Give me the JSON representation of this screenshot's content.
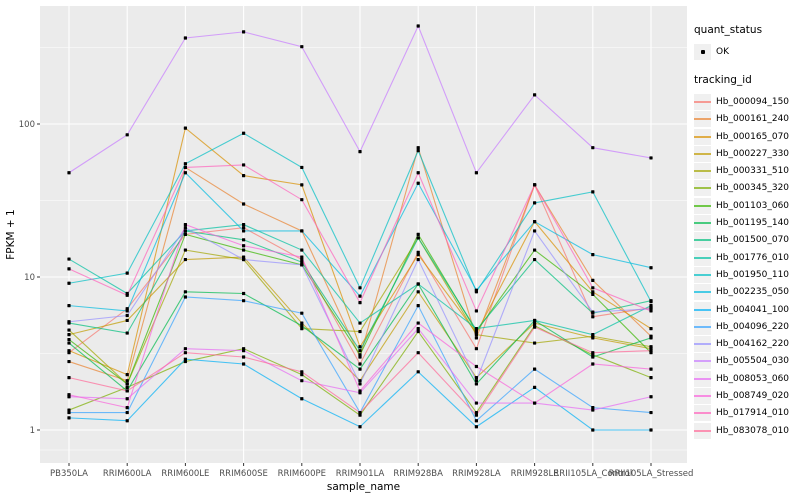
{
  "figure": {
    "panel_background": "#EBEBEB",
    "gridline_color": "#FFFFFF",
    "tick_label_color": "#4D4D4D",
    "axis_title_color": "#000000",
    "point_color": "#000000"
  },
  "legend": {
    "quant_status_title": "quant_status",
    "quant_status_items": [
      {
        "label": "OK",
        "icon": "point-icon",
        "color": "#000000"
      }
    ],
    "tracking_id_title": "tracking_id",
    "key_background": "#F0F0F0"
  },
  "chart_data": {
    "type": "line",
    "title": "",
    "xlabel": "sample_name",
    "ylabel": "FPKM + 1",
    "y_scale": "log10",
    "y_ticks": [
      1,
      10,
      100
    ],
    "ylim": [
      0.62,
      575
    ],
    "grid": true,
    "legend_position": "right",
    "marker": "black-point",
    "categories": [
      "PB350LA",
      "RRIM600LA",
      "RRIM600LE",
      "RRIM600SE",
      "RRIM600PE",
      "RRIM901LA",
      "RRIM928BA",
      "RRIM928LA",
      "RRIM928LE",
      "RRII105LA_Control",
      "RRII105LA_Stressed"
    ],
    "series": [
      {
        "name": "Hb_000094_150",
        "color": "#F8766D",
        "values": [
          3.2,
          6.2,
          19,
          21,
          13,
          2.7,
          14.5,
          3.4,
          40,
          5.5,
          6.3
        ]
      },
      {
        "name": "Hb_000161_240",
        "color": "#EA8331",
        "values": [
          2.8,
          2.1,
          52,
          30,
          20,
          3.0,
          70,
          4.0,
          40,
          9.5,
          4.1
        ]
      },
      {
        "name": "Hb_000165_070",
        "color": "#D89000",
        "values": [
          3.3,
          2.3,
          94,
          46,
          40,
          3.5,
          14,
          4.3,
          23,
          8.0,
          4.6
        ]
      },
      {
        "name": "Hb_000227_330",
        "color": "#C09B00",
        "values": [
          4.2,
          5.2,
          13,
          13.5,
          5.0,
          2.1,
          8.0,
          2.2,
          5.0,
          4.0,
          3.4
        ]
      },
      {
        "name": "Hb_000331_510",
        "color": "#A3A500",
        "values": [
          4.5,
          2.0,
          15,
          13,
          4.6,
          4.4,
          18,
          4.2,
          3.7,
          4.1,
          3.5
        ]
      },
      {
        "name": "Hb_000345_320",
        "color": "#7CAE00",
        "values": [
          1.35,
          1.9,
          2.8,
          3.4,
          2.3,
          1.25,
          4.4,
          1.3,
          4.8,
          3.1,
          2.2
        ]
      },
      {
        "name": "Hb_001103_060",
        "color": "#39B600",
        "values": [
          3.9,
          2.0,
          19,
          15,
          12,
          3.1,
          19,
          4.4,
          15,
          7.7,
          3.2
        ]
      },
      {
        "name": "Hb_001195_140",
        "color": "#00BB4E",
        "values": [
          3.7,
          1.8,
          8.0,
          7.8,
          4.8,
          2.5,
          9.0,
          2.0,
          5.2,
          3.0,
          4.0
        ]
      },
      {
        "name": "Hb_001500_070",
        "color": "#00BF7D",
        "values": [
          5.0,
          4.3,
          20,
          17.5,
          12.5,
          3.3,
          18,
          4.5,
          13,
          5.8,
          7.0
        ]
      },
      {
        "name": "Hb_001776_010",
        "color": "#00C1A3",
        "values": [
          13.1,
          7.8,
          20,
          22,
          15,
          5.0,
          9.0,
          4.6,
          5.2,
          4.2,
          6.5
        ]
      },
      {
        "name": "Hb_001950_110",
        "color": "#00BFC4",
        "values": [
          9.1,
          10.6,
          55,
          87,
          52,
          8.5,
          67,
          8.0,
          30.5,
          36,
          6.9
        ]
      },
      {
        "name": "Hb_002235_050",
        "color": "#00BAE0",
        "values": [
          6.5,
          6.0,
          48,
          20,
          20,
          7.5,
          41,
          8.2,
          23,
          14,
          11.5
        ]
      },
      {
        "name": "Hb_004041_100",
        "color": "#00B0F6",
        "values": [
          1.2,
          1.15,
          2.9,
          2.7,
          1.6,
          1.05,
          2.4,
          1.05,
          1.9,
          1.0,
          1.0
        ]
      },
      {
        "name": "Hb_004096_220",
        "color": "#35A2FF",
        "values": [
          1.3,
          1.3,
          7.4,
          7.0,
          5.8,
          1.3,
          6.5,
          1.15,
          2.5,
          1.4,
          1.3
        ]
      },
      {
        "name": "Hb_004162_220",
        "color": "#9590FF",
        "values": [
          5.1,
          5.6,
          21,
          13,
          12,
          2.0,
          13,
          2.1,
          20,
          5.9,
          6.2
        ]
      },
      {
        "name": "Hb_005504_030",
        "color": "#C77CFF",
        "values": [
          48,
          85,
          365,
          400,
          320,
          66,
          437,
          48,
          155,
          70,
          60
        ]
      },
      {
        "name": "Hb_008053_060",
        "color": "#E76BF3",
        "values": [
          1.65,
          1.6,
          3.4,
          3.3,
          2.1,
          1.75,
          4.6,
          1.5,
          1.5,
          1.35,
          1.65
        ]
      },
      {
        "name": "Hb_008749_020",
        "color": "#FA62DB",
        "values": [
          1.7,
          1.4,
          22,
          16,
          13.5,
          1.8,
          5.0,
          2.6,
          1.5,
          2.7,
          2.5
        ]
      },
      {
        "name": "Hb_017914_010",
        "color": "#FF62BC",
        "values": [
          11.3,
          7.6,
          52,
          54,
          32,
          6.8,
          48,
          6.0,
          40,
          8.5,
          6.0
        ]
      },
      {
        "name": "Hb_083078_010",
        "color": "#FF6A98",
        "values": [
          2.2,
          1.8,
          3.2,
          3.0,
          2.4,
          1.3,
          3.2,
          1.25,
          4.7,
          3.2,
          3.3
        ]
      }
    ]
  }
}
